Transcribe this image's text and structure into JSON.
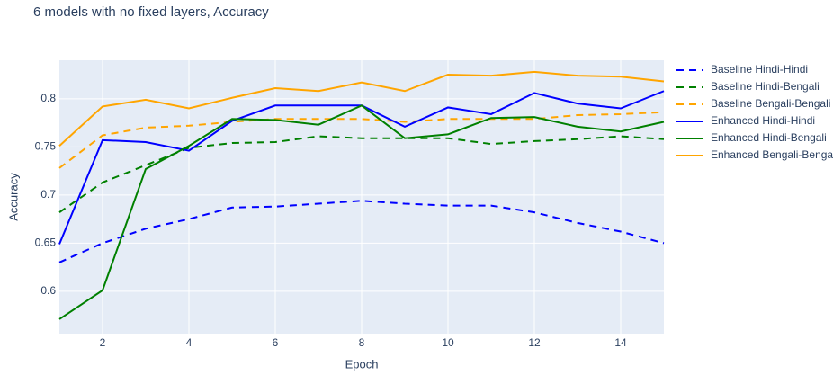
{
  "chart_data": {
    "type": "line",
    "title": "6 models with no fixed layers, Accuracy",
    "x_label": "Epoch",
    "y_label": "Accuracy",
    "x": [
      1,
      2,
      3,
      4,
      5,
      6,
      7,
      8,
      9,
      10,
      11,
      12,
      13,
      14,
      15
    ],
    "xlim": [
      1,
      15
    ],
    "xticks": [
      2,
      4,
      6,
      8,
      10,
      12,
      14
    ],
    "ylim": [
      0.556,
      0.84
    ],
    "yticks": [
      0.6,
      0.65,
      0.7,
      0.75,
      0.8
    ],
    "grid": true,
    "legend": "right",
    "series": [
      {
        "name": "Baseline Hindi-Hindi",
        "color": "#0000ff",
        "dash": true,
        "values": [
          0.63,
          0.65,
          0.665,
          0.675,
          0.687,
          0.688,
          0.691,
          0.694,
          0.691,
          0.689,
          0.689,
          0.682,
          0.671,
          0.662,
          0.65
        ]
      },
      {
        "name": "Baseline Hindi-Bengali",
        "color": "#008000",
        "dash": true,
        "values": [
          0.682,
          0.713,
          0.731,
          0.749,
          0.754,
          0.755,
          0.761,
          0.759,
          0.759,
          0.759,
          0.753,
          0.756,
          0.758,
          0.761,
          0.758
        ]
      },
      {
        "name": "Baseline Bengali-Bengali",
        "color": "#ffa500",
        "dash": true,
        "values": [
          0.728,
          0.762,
          0.77,
          0.772,
          0.776,
          0.779,
          0.779,
          0.779,
          0.776,
          0.779,
          0.779,
          0.779,
          0.783,
          0.784,
          0.786
        ]
      },
      {
        "name": "Enhanced Hindi-Hindi",
        "color": "#0000ff",
        "dash": false,
        "values": [
          0.649,
          0.757,
          0.755,
          0.746,
          0.777,
          0.793,
          0.793,
          0.793,
          0.771,
          0.791,
          0.784,
          0.806,
          0.795,
          0.79,
          0.808
        ]
      },
      {
        "name": "Enhanced Hindi-Bengali",
        "color": "#008000",
        "dash": false,
        "values": [
          0.571,
          0.601,
          0.727,
          0.751,
          0.779,
          0.778,
          0.773,
          0.793,
          0.759,
          0.763,
          0.78,
          0.781,
          0.771,
          0.766,
          0.776
        ]
      },
      {
        "name": "Enhanced Bengali-Bengali",
        "color": "#ffa500",
        "dash": false,
        "values": [
          0.751,
          0.792,
          0.799,
          0.79,
          0.801,
          0.811,
          0.808,
          0.817,
          0.808,
          0.825,
          0.824,
          0.828,
          0.824,
          0.823,
          0.818
        ]
      }
    ]
  }
}
